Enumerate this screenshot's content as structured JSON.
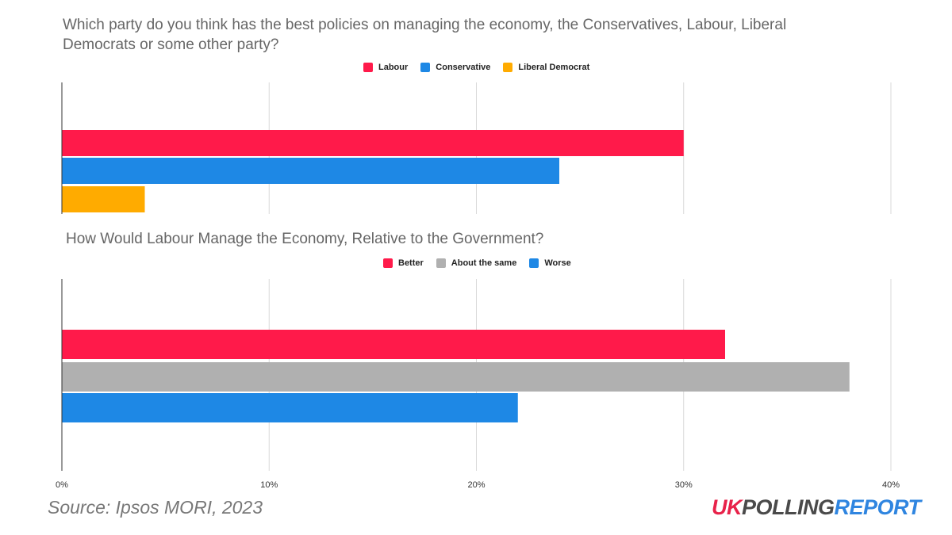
{
  "chart_data": [
    {
      "type": "bar",
      "orientation": "horizontal",
      "title": "Which party do you think has the best policies on managing the economy, the Conservatives, Labour, Liberal Democrats or some other party?",
      "series": [
        {
          "name": "Labour",
          "color": "#ff1a4a",
          "values": [
            30
          ]
        },
        {
          "name": "Conservative",
          "color": "#1e88e5",
          "values": [
            24
          ]
        },
        {
          "name": "Liberal Democrat",
          "color": "#ffab00",
          "values": [
            4
          ]
        }
      ],
      "xlim": [
        0,
        40
      ],
      "grid": true,
      "legend_position": "top-center"
    },
    {
      "type": "bar",
      "orientation": "horizontal",
      "title": "How Would Labour Manage the Economy, Relative to the Government?",
      "series": [
        {
          "name": "Better",
          "color": "#ff1a4a",
          "values": [
            32
          ]
        },
        {
          "name": "About the same",
          "color": "#b0b0b0",
          "values": [
            38
          ]
        },
        {
          "name": "Worse",
          "color": "#1e88e5",
          "values": [
            22
          ]
        }
      ],
      "xlim": [
        0,
        40
      ],
      "xticks": [
        "0%",
        "10%",
        "20%",
        "30%",
        "40%"
      ],
      "grid": true,
      "legend_position": "top-center"
    }
  ],
  "source": "Source: Ipsos MORI, 2023",
  "brand": {
    "uk": "UK",
    "polling": "POLLING",
    "report": "REPORT"
  }
}
